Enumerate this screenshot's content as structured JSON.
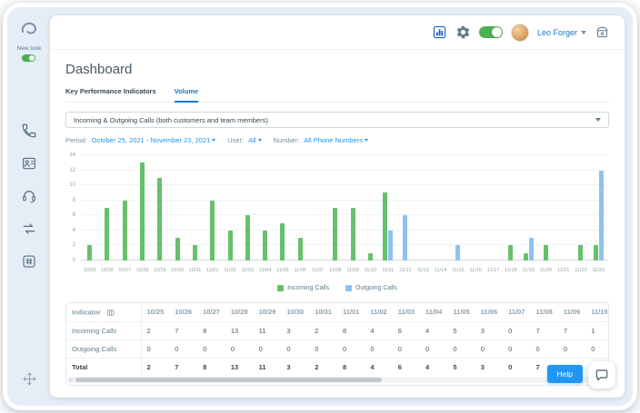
{
  "sidebar": {
    "new_look_label": "New look",
    "icons": [
      "app-logo",
      "phone-icon",
      "contacts-icon",
      "agent-headset-icon",
      "call-history-icon",
      "dialpad-icon",
      "move-handle-icon"
    ]
  },
  "header": {
    "user_name": "Leo Forger",
    "icons": [
      "stats-icon",
      "gear-icon",
      "availability-toggle",
      "avatar",
      "phone-device-icon"
    ]
  },
  "page": {
    "title": "Dashboard",
    "tabs": [
      {
        "label": "Key Performance Indicators",
        "active": false
      },
      {
        "label": "Volume",
        "active": true
      }
    ],
    "report_selector": {
      "value": "Incoming & Outgoing Calls (both customers and team members)"
    },
    "filters": [
      {
        "label": "Period:",
        "value": "October 25, 2021 - November 23, 2021"
      },
      {
        "label": "User:",
        "value": "All"
      },
      {
        "label": "Number:",
        "value": "All Phone Numbers"
      }
    ]
  },
  "chart_data": {
    "type": "bar",
    "title": "",
    "categories": [
      "10/25",
      "10/26",
      "10/27",
      "10/28",
      "10/29",
      "10/30",
      "10/31",
      "11/01",
      "11/02",
      "11/03",
      "11/04",
      "11/05",
      "11/06",
      "11/07",
      "11/08",
      "11/09",
      "11/10",
      "11/11",
      "11/12",
      "11/13",
      "11/14",
      "11/15",
      "11/16",
      "11/17",
      "11/18",
      "11/19",
      "11/20",
      "11/21",
      "11/22",
      "11/23"
    ],
    "series": [
      {
        "name": "Incoming Calls",
        "color": "#67c06b",
        "values": [
          2,
          7,
          8,
          13,
          11,
          3,
          2,
          8,
          4,
          6,
          4,
          5,
          3,
          0,
          7,
          7,
          1,
          9,
          0,
          0,
          0,
          0,
          0,
          0,
          2,
          1,
          2,
          0,
          2,
          2
        ]
      },
      {
        "name": "Outgoing Calls",
        "color": "#8fc1ee",
        "values": [
          0,
          0,
          0,
          0,
          0,
          0,
          0,
          0,
          0,
          0,
          0,
          0,
          0,
          0,
          0,
          0,
          0,
          4,
          6,
          0,
          0,
          2,
          0,
          0,
          0,
          3,
          0,
          0,
          0,
          12
        ]
      }
    ],
    "ylim": [
      0,
      14
    ],
    "yticks": [
      0,
      2,
      4,
      6,
      8,
      10,
      12,
      14
    ],
    "grid": true,
    "legend_position": "bottom"
  },
  "table": {
    "indicator_header": "Indicator",
    "columns": [
      "10/25",
      "10/26",
      "10/27",
      "10/28",
      "10/29",
      "10/30",
      "10/31",
      "11/01",
      "11/02",
      "11/03",
      "11/04",
      "11/05",
      "11/06",
      "11/07",
      "11/08",
      "11/09",
      "11/10",
      "11/11",
      "11/12"
    ],
    "rows": [
      {
        "label": "Incoming Calls",
        "bold": false,
        "values": [
          2,
          7,
          8,
          13,
          11,
          3,
          2,
          8,
          4,
          6,
          4,
          5,
          3,
          0,
          7,
          7,
          1,
          9,
          0
        ]
      },
      {
        "label": "Outgoing Calls",
        "bold": false,
        "values": [
          0,
          0,
          0,
          0,
          0,
          0,
          0,
          0,
          0,
          0,
          0,
          0,
          0,
          0,
          0,
          0,
          0,
          4,
          6
        ]
      },
      {
        "label": "Total",
        "bold": true,
        "values": [
          2,
          7,
          8,
          13,
          11,
          3,
          2,
          8,
          4,
          6,
          4,
          5,
          3,
          0,
          7,
          7,
          1,
          13,
          6
        ]
      }
    ]
  },
  "help_button_label": "Help"
}
